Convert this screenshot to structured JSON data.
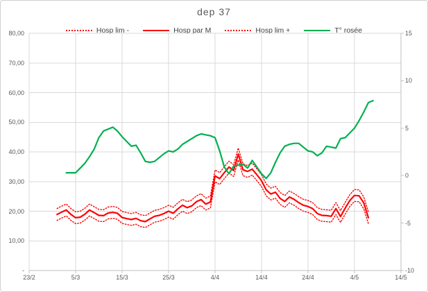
{
  "chart_data": {
    "type": "line",
    "title": "dep 37",
    "colors": {
      "red": "#FF0000",
      "green": "#00B050",
      "grid": "#D9D9D9",
      "axis": "#BFBFBF",
      "text": "#595959"
    },
    "legend": [
      {
        "label": "Hosp lim -",
        "style": "dotted",
        "color": "#FF0000"
      },
      {
        "label": "Hosp par M",
        "style": "solid",
        "color": "#FF0000"
      },
      {
        "label": "Hosp lim +",
        "style": "dotted",
        "color": "#FF0000"
      },
      {
        "label": "T° rosée",
        "style": "solid",
        "color": "#00B050"
      }
    ],
    "x_axis": {
      "tick_labels": [
        "23/2",
        "5/3",
        "15/3",
        "25/3",
        "4/4",
        "14/4",
        "24/4",
        "4/5",
        "14/5"
      ],
      "tick_days": [
        0,
        10,
        20,
        30,
        40,
        50,
        60,
        70,
        80
      ],
      "range_days": [
        0,
        80
      ]
    },
    "y_axis_left": {
      "tick_labels": [
        "-",
        "10,00",
        "20,00",
        "30,00",
        "40,00",
        "50,00",
        "60,00",
        "70,00",
        "80,00"
      ],
      "tick_values": [
        0,
        10,
        20,
        30,
        40,
        50,
        60,
        70,
        80
      ],
      "range": [
        0,
        80
      ]
    },
    "y_axis_right": {
      "tick_labels": [
        "-10",
        "-5",
        "0",
        "5",
        "10",
        "15"
      ],
      "tick_values": [
        -10,
        -5,
        0,
        5,
        10,
        15
      ],
      "range": [
        -10,
        15
      ]
    },
    "series": [
      {
        "name": "Hosp lim -",
        "axis": "left",
        "style": "dotted",
        "color": "#FF0000",
        "width": 1.4,
        "start_day": 6,
        "start_date": "1/3",
        "values": [
          16.9,
          17.7,
          18.4,
          16.9,
          15.8,
          16.0,
          17.0,
          18.4,
          17.5,
          16.6,
          16.5,
          17.4,
          17.6,
          17.3,
          15.9,
          15.5,
          15.2,
          15.6,
          14.8,
          14.5,
          15.4,
          16.3,
          16.6,
          17.2,
          18.0,
          17.3,
          18.8,
          20.0,
          19.2,
          19.8,
          21.2,
          21.9,
          20.4,
          21.1,
          29.9,
          29.0,
          31.0,
          32.9,
          31.7,
          37.3,
          32.0,
          31.4,
          32.2,
          30.3,
          28.3,
          25.2,
          23.8,
          24.4,
          22.3,
          21.3,
          22.8,
          22.0,
          20.9,
          20.0,
          19.6,
          18.9,
          17.2,
          16.6,
          16.5,
          16.3,
          18.9,
          16.2,
          19.0,
          21.6,
          23.3,
          23.2,
          20.8,
          15.8
        ]
      },
      {
        "name": "Hosp par M",
        "axis": "left",
        "style": "solid",
        "color": "#FF0000",
        "width": 2.2,
        "start_day": 6,
        "start_date": "1/3",
        "values": [
          18.9,
          19.7,
          20.4,
          18.9,
          17.8,
          18.0,
          19.0,
          20.4,
          19.5,
          18.6,
          18.5,
          19.4,
          19.6,
          19.3,
          17.9,
          17.5,
          17.2,
          17.6,
          16.8,
          16.5,
          17.4,
          18.3,
          18.6,
          19.2,
          20.0,
          19.3,
          20.8,
          22.0,
          21.2,
          21.8,
          23.2,
          23.9,
          22.4,
          23.1,
          31.9,
          31.0,
          33.0,
          34.9,
          33.7,
          39.3,
          34.0,
          33.4,
          34.2,
          32.3,
          30.3,
          27.2,
          25.8,
          26.4,
          24.3,
          23.3,
          24.8,
          24.0,
          22.9,
          22.0,
          21.6,
          20.9,
          19.2,
          18.6,
          18.5,
          18.3,
          20.9,
          18.2,
          21.0,
          23.6,
          25.3,
          25.2,
          22.8,
          17.8
        ]
      },
      {
        "name": "Hosp lim +",
        "axis": "left",
        "style": "dotted",
        "color": "#FF0000",
        "width": 1.4,
        "start_day": 6,
        "start_date": "1/3",
        "values": [
          20.9,
          21.7,
          22.4,
          20.9,
          19.8,
          20.0,
          21.0,
          22.4,
          21.5,
          20.6,
          20.5,
          21.4,
          21.6,
          21.3,
          19.9,
          19.5,
          19.2,
          19.6,
          18.8,
          18.5,
          19.4,
          20.3,
          20.6,
          21.2,
          22.0,
          21.3,
          22.8,
          24.0,
          23.2,
          23.8,
          25.2,
          25.9,
          24.4,
          25.1,
          33.9,
          33.0,
          35.0,
          36.9,
          35.7,
          41.3,
          36.0,
          35.4,
          36.2,
          34.3,
          32.3,
          29.2,
          27.8,
          28.4,
          26.3,
          25.3,
          26.8,
          26.0,
          24.9,
          24.0,
          23.6,
          22.9,
          21.2,
          20.6,
          20.5,
          20.3,
          22.9,
          20.2,
          23.0,
          25.6,
          27.3,
          27.2,
          24.8,
          19.8
        ]
      },
      {
        "name": "T° rosée",
        "axis": "right",
        "style": "solid",
        "color": "#00B050",
        "width": 2.2,
        "start_day": 8,
        "start_date": "3/3",
        "values": [
          0.3,
          0.3,
          0.3,
          0.8,
          1.3,
          2.0,
          2.8,
          4.0,
          4.7,
          4.9,
          5.1,
          4.7,
          4.1,
          3.6,
          3.1,
          3.2,
          2.4,
          1.5,
          1.4,
          1.5,
          1.9,
          2.3,
          2.6,
          2.5,
          2.8,
          3.3,
          3.6,
          3.9,
          4.2,
          4.4,
          4.3,
          4.2,
          4.0,
          2.6,
          0.9,
          0.2,
          1.0,
          1.1,
          1.2,
          0.8,
          1.6,
          0.9,
          0.2,
          -0.3,
          0.3,
          1.4,
          2.4,
          3.1,
          3.3,
          3.4,
          3.4,
          3.0,
          2.6,
          2.5,
          2.1,
          2.4,
          3.1,
          3.0,
          2.9,
          3.9,
          4.0,
          4.5,
          5.0,
          5.8,
          6.7,
          7.7,
          7.9
        ]
      }
    ]
  }
}
